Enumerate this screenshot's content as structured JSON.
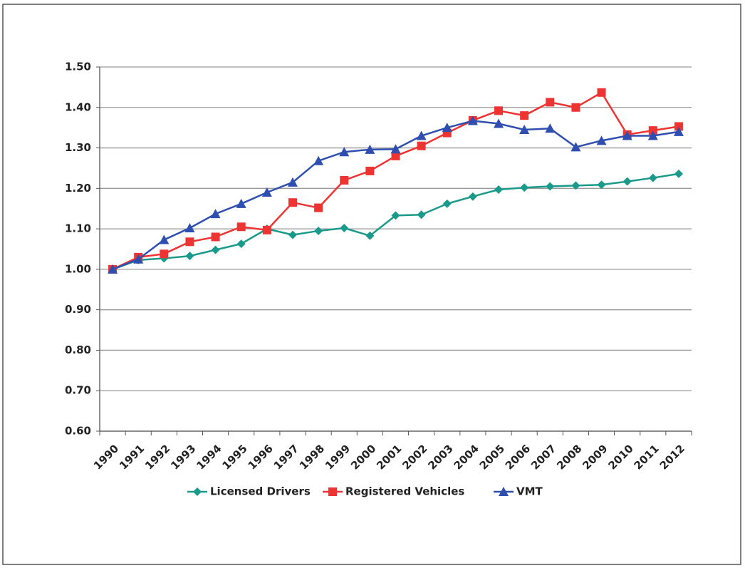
{
  "chart_data": {
    "type": "line",
    "categories": [
      "1990",
      "1991",
      "1992",
      "1993",
      "1994",
      "1995",
      "1996",
      "1997",
      "1998",
      "1999",
      "2000",
      "2001",
      "2002",
      "2003",
      "2004",
      "2005",
      "2006",
      "2007",
      "2008",
      "2009",
      "2010",
      "2011",
      "2012"
    ],
    "series": [
      {
        "name": "Licensed Drivers",
        "color": "#1a9a8a",
        "marker": "diamond",
        "values": [
          1.0,
          1.023,
          1.027,
          1.033,
          1.048,
          1.063,
          1.1,
          1.085,
          1.095,
          1.102,
          1.083,
          1.133,
          1.135,
          1.162,
          1.18,
          1.197,
          1.202,
          1.205,
          1.207,
          1.209,
          1.217,
          1.226,
          1.236
        ]
      },
      {
        "name": "Registered Vehicles",
        "color": "#ee3333",
        "marker": "square",
        "values": [
          1.0,
          1.03,
          1.038,
          1.068,
          1.08,
          1.105,
          1.097,
          1.165,
          1.152,
          1.22,
          1.243,
          1.28,
          1.305,
          1.337,
          1.368,
          1.392,
          1.38,
          1.413,
          1.4,
          1.437,
          1.333,
          1.343,
          1.353
        ]
      },
      {
        "name": "VMT",
        "color": "#2f4fb0",
        "marker": "triangle",
        "values": [
          1.0,
          1.025,
          1.073,
          1.102,
          1.137,
          1.162,
          1.19,
          1.215,
          1.268,
          1.29,
          1.296,
          1.297,
          1.33,
          1.35,
          1.367,
          1.36,
          1.345,
          1.348,
          1.302,
          1.318,
          1.33,
          1.33,
          1.34
        ]
      }
    ],
    "ylim": [
      0.6,
      1.5
    ],
    "yticks": [
      {
        "value": 0.6,
        "label": "0.60"
      },
      {
        "value": 0.7,
        "label": "0.70"
      },
      {
        "value": 0.8,
        "label": "0.80"
      },
      {
        "value": 0.9,
        "label": "0.90"
      },
      {
        "value": 1.0,
        "label": "1.00"
      },
      {
        "value": 1.1,
        "label": "1.10"
      },
      {
        "value": 1.2,
        "label": "1.20"
      },
      {
        "value": 1.3,
        "label": "1.30"
      },
      {
        "value": 1.4,
        "label": "1.40"
      },
      {
        "value": 1.5,
        "label": "1.50"
      }
    ],
    "grid": true,
    "legend": "bottom"
  }
}
